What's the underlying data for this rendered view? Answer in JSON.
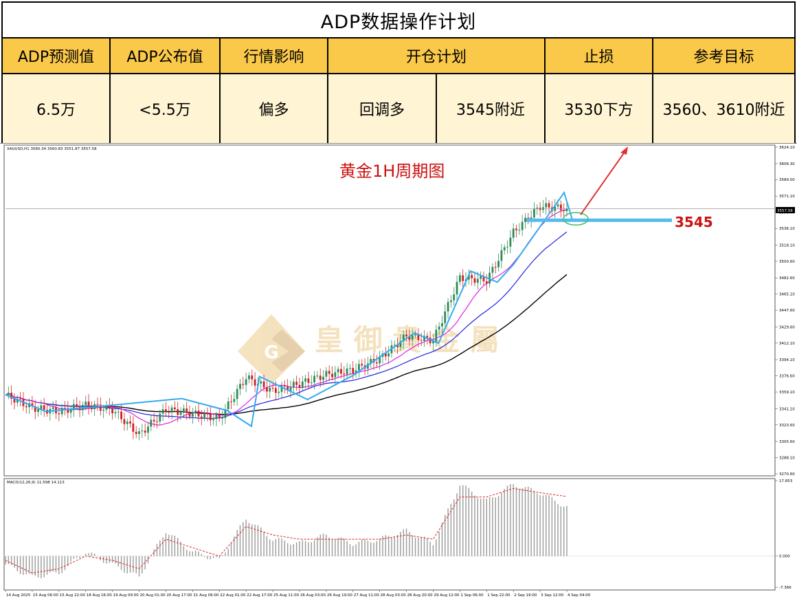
{
  "table": {
    "title": "ADP数据操作计划",
    "headers": {
      "adp_forecast": "ADP预测值",
      "adp_actual": "ADP公布值",
      "market_impact": "行情影响",
      "open_plan": "开仓计划",
      "stop_loss": "止损",
      "target": "参考目标"
    },
    "values": {
      "adp_forecast": "6.5万",
      "adp_actual": "<5.5万",
      "market_impact": "偏多",
      "open_plan_action": "回调多",
      "open_plan_price": "3545附近",
      "stop_loss": "3530下方",
      "target": "3560、3610附近"
    }
  },
  "chart": {
    "symbol_header": "XAUUSD,H1  3560.34 3560.83 3551.87 3557.58",
    "annotation_title": "黄金1H周期图",
    "level_label": "3545",
    "current_price_tag": "3557.58",
    "watermark_text": "皇 御 貴 金 屬",
    "watermark_letter": "G",
    "macd_header": "MACD(12,26,9) 11.598 14.113",
    "colors": {
      "bull_candle": "#2e8b57",
      "bear_candle": "#cc2222",
      "ma_fast": "#e020e0",
      "ma_mid": "#2222dd",
      "ma_slow": "#000000",
      "trend_line": "#33aaee",
      "level_line": "#55bbee",
      "arrow": "#e03030",
      "annotation": "#cc1111",
      "ellipse": "#44bb66",
      "macd_hist": "#999999",
      "macd_signal": "#dd2222",
      "watermark": "#e8c070"
    }
  },
  "chart_data": [
    {
      "type": "line",
      "title": "黄金1H周期图",
      "x": [
        "14 Aug 2025",
        "15 Aug 06:00",
        "15 Aug 22:00",
        "18 Aug 16:00",
        "19 Aug 09:00",
        "20 Aug 01:00",
        "20 Aug 17:00",
        "21 Aug 09:00",
        "22 Aug 01:00",
        "22 Aug 17:00",
        "25 Aug 11:00",
        "26 Aug 03:00",
        "26 Aug 19:00",
        "27 Aug 11:00",
        "28 Aug 03:00",
        "28 Aug 20:00",
        "29 Aug 12:00",
        "1 Sep 06:00",
        "1 Sep 22:00",
        "2 Sep 19:00",
        "3 Sep 12:00",
        "4 Sep 04:00"
      ],
      "ylim": [
        3270.6,
        3624.1
      ],
      "y_ticks": [
        3624.1,
        3606.3,
        3589.0,
        3571.1,
        3553.6,
        3536.1,
        3518.1,
        3500.6,
        3482.6,
        3465.1,
        3447.6,
        3429.6,
        3412.1,
        3394.1,
        3376.6,
        3359.1,
        3341.1,
        3323.6,
        3305.6,
        3288.1,
        3270.6
      ],
      "series": [
        {
          "name": "Close",
          "values": [
            3356,
            3342,
            3338,
            3345,
            3340,
            3313,
            3340,
            3336,
            3330,
            3375,
            3360,
            3368,
            3378,
            3383,
            3395,
            3420,
            3415,
            3483,
            3480,
            3532,
            3560,
            3557.58
          ]
        }
      ],
      "key_levels": [
        3545
      ],
      "targets": [
        3560,
        3610
      ],
      "stop_loss": 3530
    },
    {
      "type": "bar",
      "title": "MACD(12,26,9) 11.598 14.113",
      "ylim": [
        -7.366,
        17.853
      ],
      "y_ticks": [
        17.853,
        0.0,
        -7.366
      ],
      "series": [
        {
          "name": "MACD",
          "values": [
            -2,
            -5,
            -4,
            1,
            -2,
            -5,
            6,
            1,
            -1,
            9,
            4,
            3,
            5,
            3,
            4,
            6,
            3,
            17,
            13,
            17,
            15,
            11.598
          ]
        },
        {
          "name": "Signal",
          "values": [
            -1,
            -4,
            -3,
            0,
            -1,
            -3,
            4,
            2,
            0,
            7,
            5,
            4,
            4,
            4,
            4,
            5,
            4,
            14,
            14,
            16,
            15,
            14.113
          ]
        }
      ]
    }
  ]
}
